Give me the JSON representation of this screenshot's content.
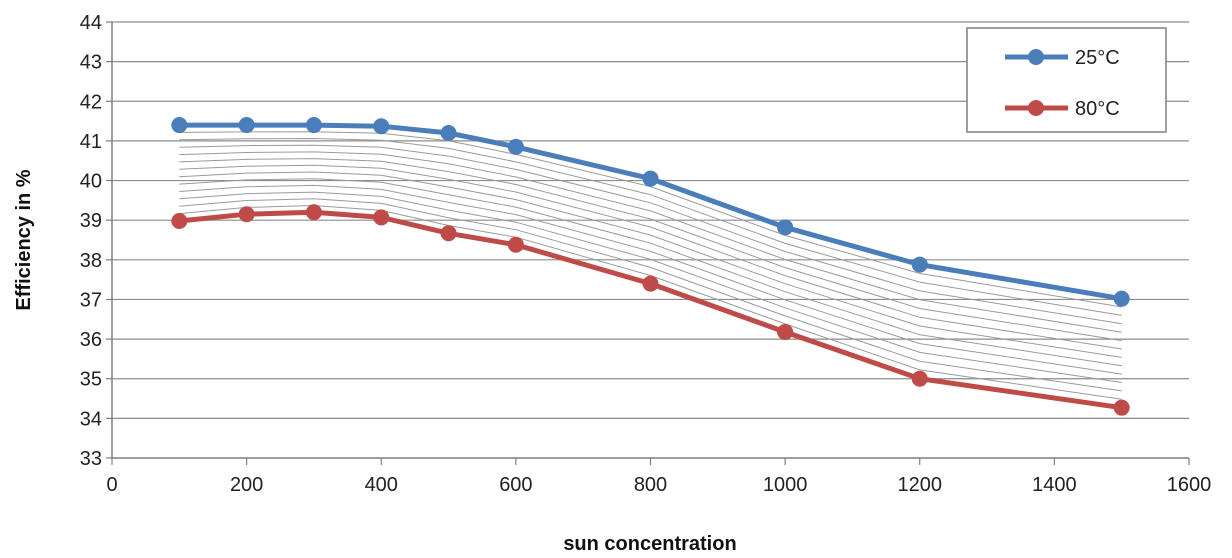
{
  "chart_data": {
    "type": "line",
    "title": "",
    "xlabel": "sun concentration",
    "ylabel": "Efficiency in %",
    "xlim": [
      0,
      1600
    ],
    "ylim": [
      33,
      44
    ],
    "x_ticks": [
      0,
      200,
      400,
      600,
      800,
      1000,
      1200,
      1400,
      1600
    ],
    "y_ticks": [
      33,
      34,
      35,
      36,
      37,
      38,
      39,
      40,
      41,
      42,
      43,
      44
    ],
    "grid": "horizontal",
    "legend_position": "top-right",
    "x": [
      100,
      200,
      300,
      400,
      500,
      600,
      800,
      1000,
      1200,
      1500
    ],
    "series": [
      {
        "name": "25°C",
        "color": "#4a7ebb",
        "values": [
          41.4,
          41.4,
          41.4,
          41.37,
          41.2,
          40.85,
          40.05,
          38.82,
          37.88,
          37.02
        ]
      },
      {
        "name": "80°C",
        "color": "#be4b48",
        "values": [
          38.98,
          39.15,
          39.2,
          39.07,
          38.67,
          38.38,
          37.4,
          36.18,
          35.0,
          34.27
        ]
      }
    ],
    "interpolation_lines": 12,
    "interpolation_color": "#9a9a9a"
  }
}
